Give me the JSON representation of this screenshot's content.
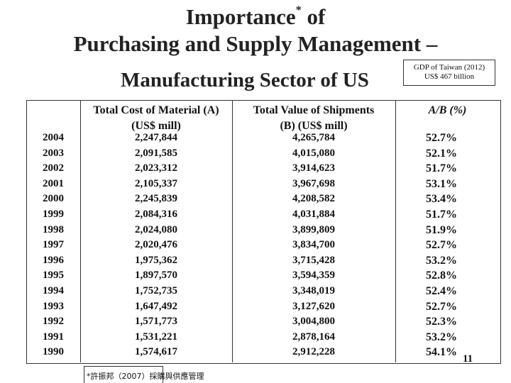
{
  "title": {
    "line1": "Importance",
    "line1_sup": "*",
    "line1_end": " of",
    "line2": "Purchasing and Supply Management –",
    "line3": "Manufacturing Sector of US"
  },
  "gdp_note": {
    "line1": "GDP of Taiwan (2012)",
    "line2": "US$ 467 billion"
  },
  "table": {
    "headers": {
      "cost": [
        "Total Cost of Material (A)",
        "(US$ mill)"
      ],
      "value": [
        "Total Value of Shipments",
        "(B) (US$ mill)"
      ],
      "ratio": "A/B (%)"
    },
    "years": [
      "2004",
      "2003",
      "2002",
      "2001",
      "2000",
      "1999",
      "1998",
      "1997",
      "1996",
      "1995",
      "1994",
      "1993",
      "1992",
      "1991",
      "1990"
    ],
    "cost": [
      "2,247,844",
      "2,091,585",
      "2,023,312",
      "2,105,337",
      "2,245,839",
      "2,084,316",
      "2,024,080",
      "2,020,476",
      "1,975,362",
      "1,897,570",
      "1,752,735",
      "1,647,492",
      "1,571,773",
      "1,531,221",
      "1,574,617"
    ],
    "value": [
      "4,265,784",
      "4,015,080",
      "3,914,623",
      "3,967,698",
      "4,208,582",
      "4,031,884",
      "3,899,809",
      "3,834,700",
      "3,715,428",
      "3,594,359",
      "3,348,019",
      "3,127,620",
      "3,004,800",
      "2,878,164",
      "2,912,228"
    ],
    "ratio": [
      "52.7%",
      "52.1%",
      "51.7%",
      "53.1%",
      "53.4%",
      "51.7%",
      "51.9%",
      "52.7%",
      "53.2%",
      "52.8%",
      "52.4%",
      "52.7%",
      "52.3%",
      "53.2%",
      "54.1%"
    ]
  },
  "footnote": "*許振邦（2007）採購與供應管理",
  "page_number": "11"
}
